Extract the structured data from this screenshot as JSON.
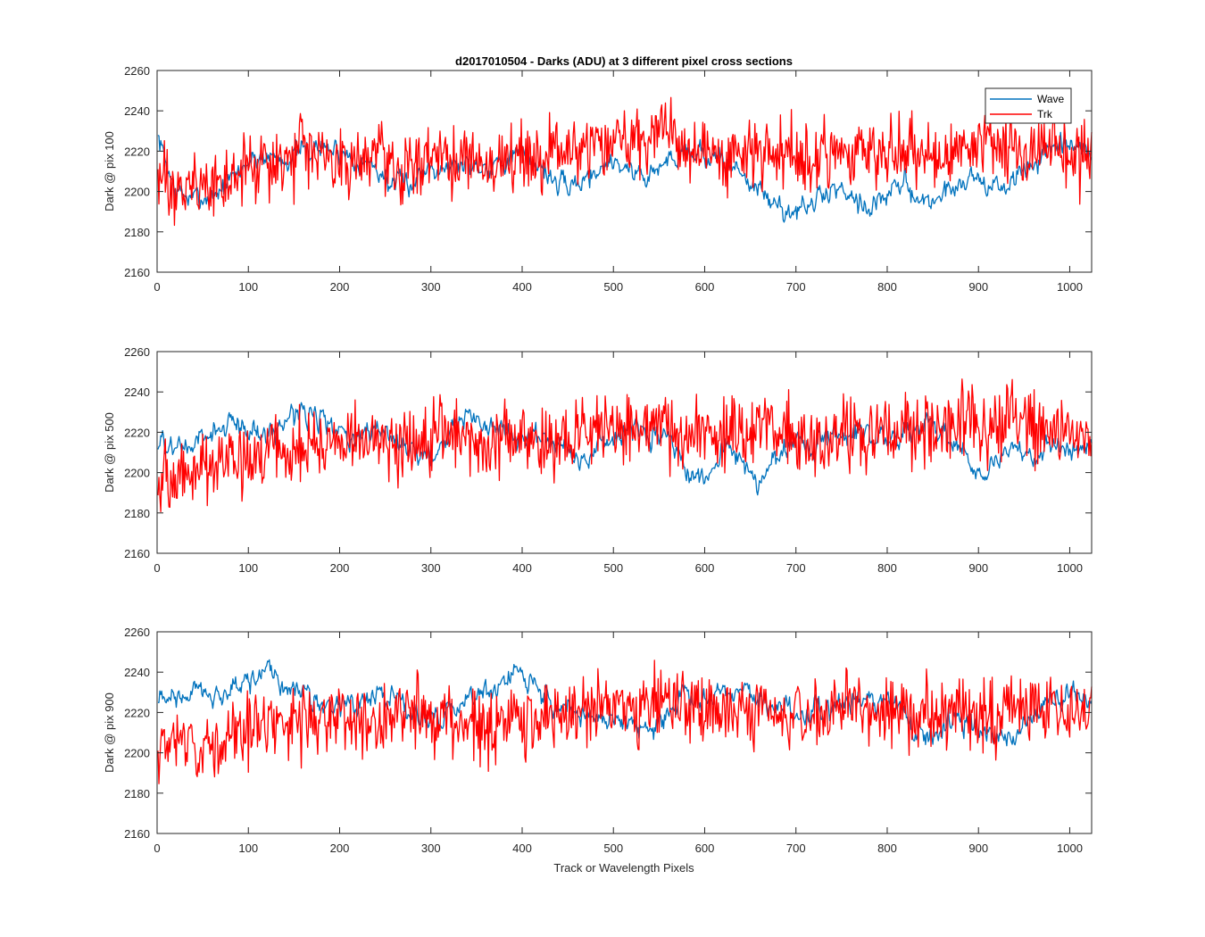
{
  "figure": {
    "title": "d2017010504 - Darks (ADU) at 3 different pixel cross sections",
    "xlabel": "Track or Wavelength Pixels"
  },
  "colors": {
    "Wave": "#0072BD",
    "Trk": "#FF0000",
    "axis": "#262626"
  },
  "chart_data": [
    {
      "type": "line",
      "ylabel": "Dark @ pix 100",
      "xlim": [
        0,
        1024
      ],
      "ylim": [
        2160,
        2260
      ],
      "xticks": [
        0,
        100,
        200,
        300,
        400,
        500,
        600,
        700,
        800,
        900,
        1000
      ],
      "yticks": [
        2160,
        2180,
        2200,
        2220,
        2240,
        2260
      ],
      "legend": "top-right",
      "series": [
        {
          "name": "Wave",
          "x": [
            0,
            20,
            40,
            60,
            80,
            100,
            120,
            140,
            160,
            180,
            200,
            220,
            240,
            260,
            280,
            300,
            320,
            340,
            360,
            380,
            400,
            420,
            440,
            460,
            480,
            500,
            520,
            540,
            560,
            580,
            600,
            620,
            640,
            660,
            680,
            700,
            720,
            740,
            760,
            780,
            800,
            820,
            840,
            860,
            880,
            900,
            920,
            940,
            960,
            980,
            1000,
            1023
          ],
          "values": [
            2228,
            2200,
            2196,
            2198,
            2205,
            2215,
            2218,
            2216,
            2220,
            2222,
            2220,
            2216,
            2212,
            2202,
            2205,
            2214,
            2212,
            2214,
            2213,
            2216,
            2218,
            2214,
            2202,
            2204,
            2210,
            2216,
            2210,
            2208,
            2215,
            2222,
            2218,
            2214,
            2210,
            2200,
            2192,
            2190,
            2194,
            2202,
            2200,
            2192,
            2198,
            2204,
            2194,
            2198,
            2205,
            2208,
            2200,
            2206,
            2214,
            2220,
            2222,
            2218
          ]
        },
        {
          "name": "Trk",
          "x": [
            0,
            20,
            40,
            60,
            80,
            100,
            120,
            140,
            160,
            180,
            200,
            220,
            240,
            260,
            280,
            300,
            320,
            340,
            360,
            380,
            400,
            420,
            440,
            460,
            480,
            500,
            520,
            540,
            560,
            580,
            600,
            620,
            640,
            660,
            680,
            700,
            720,
            740,
            760,
            780,
            800,
            820,
            840,
            860,
            880,
            900,
            920,
            940,
            960,
            980,
            1000,
            1023
          ],
          "values": [
            2206,
            2200,
            2204,
            2202,
            2206,
            2210,
            2212,
            2214,
            2218,
            2216,
            2214,
            2218,
            2220,
            2212,
            2214,
            2215,
            2214,
            2216,
            2214,
            2216,
            2220,
            2218,
            2220,
            2222,
            2224,
            2224,
            2226,
            2228,
            2226,
            2222,
            2220,
            2218,
            2216,
            2220,
            2222,
            2218,
            2214,
            2220,
            2222,
            2216,
            2222,
            2218,
            2220,
            2218,
            2220,
            2222,
            2224,
            2220,
            2218,
            2222,
            2214,
            2220
          ]
        }
      ]
    },
    {
      "type": "line",
      "ylabel": "Dark @ pix 500",
      "xlim": [
        0,
        1024
      ],
      "ylim": [
        2160,
        2260
      ],
      "xticks": [
        0,
        100,
        200,
        300,
        400,
        500,
        600,
        700,
        800,
        900,
        1000
      ],
      "yticks": [
        2160,
        2180,
        2200,
        2220,
        2240,
        2260
      ],
      "series": [
        {
          "name": "Wave",
          "x": [
            0,
            20,
            40,
            60,
            80,
            100,
            120,
            140,
            160,
            180,
            200,
            220,
            240,
            260,
            280,
            300,
            320,
            340,
            360,
            380,
            400,
            420,
            440,
            460,
            480,
            500,
            520,
            540,
            560,
            580,
            600,
            620,
            640,
            660,
            680,
            700,
            720,
            740,
            760,
            780,
            800,
            820,
            840,
            860,
            880,
            900,
            920,
            940,
            960,
            980,
            1000,
            1023
          ],
          "values": [
            2214,
            2212,
            2212,
            2220,
            2224,
            2222,
            2218,
            2226,
            2232,
            2228,
            2218,
            2216,
            2222,
            2218,
            2210,
            2208,
            2222,
            2228,
            2222,
            2218,
            2216,
            2218,
            2216,
            2206,
            2212,
            2218,
            2222,
            2216,
            2220,
            2196,
            2194,
            2214,
            2206,
            2194,
            2208,
            2216,
            2214,
            2220,
            2222,
            2220,
            2216,
            2222,
            2224,
            2222,
            2212,
            2198,
            2208,
            2212,
            2206,
            2216,
            2212,
            2212
          ]
        },
        {
          "name": "Trk",
          "x": [
            0,
            20,
            40,
            60,
            80,
            100,
            120,
            140,
            160,
            180,
            200,
            220,
            240,
            260,
            280,
            300,
            320,
            340,
            360,
            380,
            400,
            420,
            440,
            460,
            480,
            500,
            520,
            540,
            560,
            580,
            600,
            620,
            640,
            660,
            680,
            700,
            720,
            740,
            760,
            780,
            800,
            820,
            840,
            860,
            880,
            900,
            920,
            940,
            960,
            980,
            1000,
            1023
          ],
          "values": [
            2196,
            2198,
            2200,
            2204,
            2206,
            2208,
            2210,
            2212,
            2212,
            2214,
            2214,
            2216,
            2216,
            2214,
            2214,
            2216,
            2218,
            2218,
            2216,
            2216,
            2218,
            2216,
            2218,
            2220,
            2222,
            2222,
            2226,
            2224,
            2222,
            2220,
            2220,
            2218,
            2218,
            2222,
            2220,
            2218,
            2216,
            2218,
            2220,
            2218,
            2220,
            2222,
            2222,
            2224,
            2224,
            2224,
            2226,
            2224,
            2222,
            2222,
            2220,
            2222
          ]
        }
      ]
    },
    {
      "type": "line",
      "ylabel": "Dark @ pix 900",
      "xlim": [
        0,
        1024
      ],
      "ylim": [
        2160,
        2260
      ],
      "xticks": [
        0,
        100,
        200,
        300,
        400,
        500,
        600,
        700,
        800,
        900,
        1000
      ],
      "yticks": [
        2160,
        2180,
        2200,
        2220,
        2240,
        2260
      ],
      "series": [
        {
          "name": "Wave",
          "x": [
            0,
            20,
            40,
            60,
            80,
            100,
            120,
            140,
            160,
            180,
            200,
            220,
            240,
            260,
            280,
            300,
            320,
            340,
            360,
            380,
            400,
            420,
            440,
            460,
            480,
            500,
            520,
            540,
            560,
            580,
            600,
            620,
            640,
            660,
            680,
            700,
            720,
            740,
            760,
            780,
            800,
            820,
            840,
            860,
            880,
            900,
            920,
            940,
            960,
            980,
            1000,
            1023
          ],
          "values": [
            2226,
            2228,
            2230,
            2228,
            2232,
            2236,
            2238,
            2234,
            2230,
            2224,
            2222,
            2226,
            2230,
            2226,
            2218,
            2216,
            2222,
            2226,
            2228,
            2234,
            2240,
            2230,
            2222,
            2220,
            2218,
            2216,
            2214,
            2212,
            2218,
            2228,
            2226,
            2232,
            2230,
            2226,
            2222,
            2222,
            2220,
            2222,
            2226,
            2230,
            2226,
            2218,
            2208,
            2212,
            2218,
            2212,
            2210,
            2206,
            2216,
            2228,
            2230,
            2226
          ]
        },
        {
          "name": "Trk",
          "x": [
            0,
            20,
            40,
            60,
            80,
            100,
            120,
            140,
            160,
            180,
            200,
            220,
            240,
            260,
            280,
            300,
            320,
            340,
            360,
            380,
            400,
            420,
            440,
            460,
            480,
            500,
            520,
            540,
            560,
            580,
            600,
            620,
            640,
            660,
            680,
            700,
            720,
            740,
            760,
            780,
            800,
            820,
            840,
            860,
            880,
            900,
            920,
            940,
            960,
            980,
            1000,
            1023
          ],
          "values": [
            2204,
            2206,
            2204,
            2206,
            2210,
            2212,
            2214,
            2214,
            2216,
            2216,
            2218,
            2218,
            2216,
            2218,
            2220,
            2216,
            2218,
            2214,
            2212,
            2216,
            2218,
            2220,
            2218,
            2220,
            2220,
            2222,
            2222,
            2224,
            2222,
            2224,
            2222,
            2220,
            2218,
            2222,
            2222,
            2218,
            2220,
            2222,
            2224,
            2222,
            2222,
            2220,
            2220,
            2222,
            2224,
            2222,
            2220,
            2222,
            2224,
            2222,
            2220,
            2222
          ]
        }
      ]
    }
  ]
}
